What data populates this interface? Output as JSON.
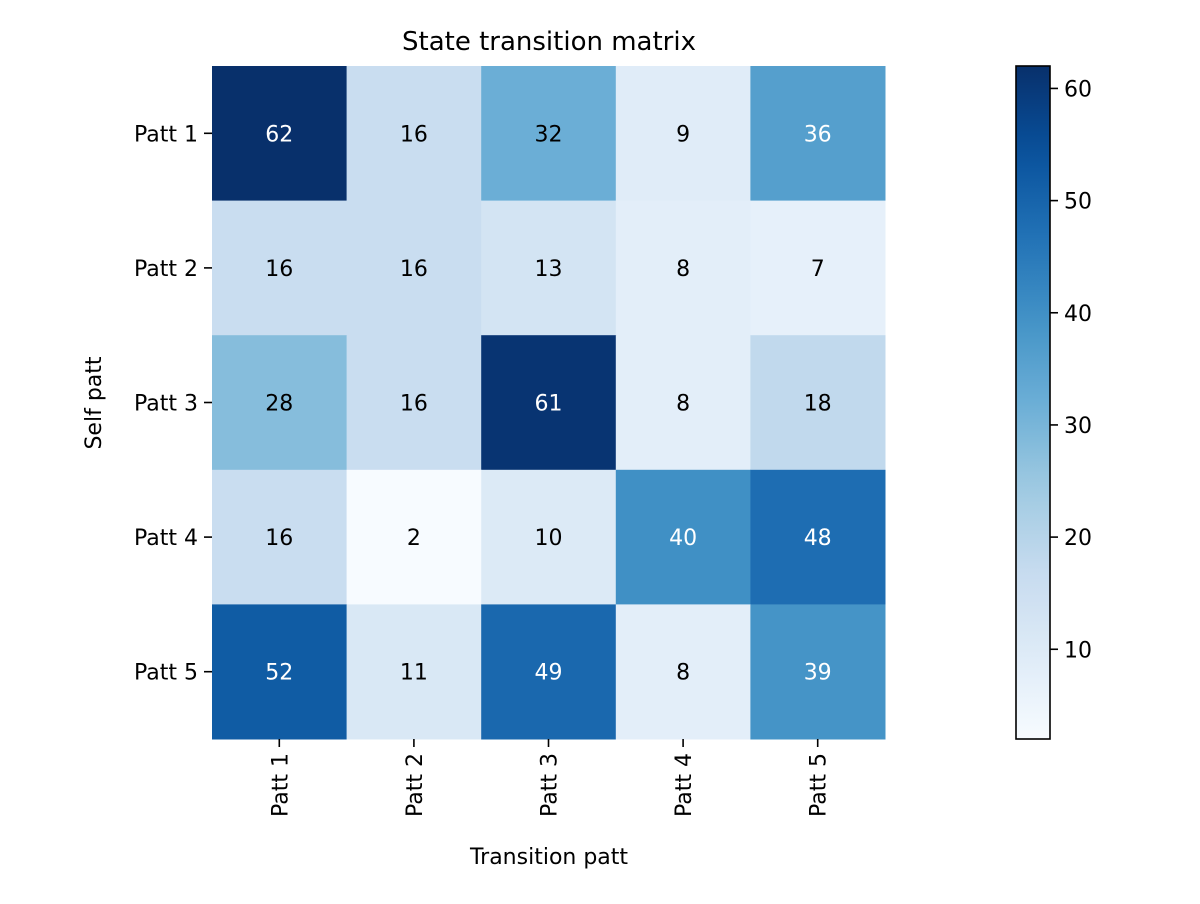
{
  "chart_data": {
    "type": "heatmap",
    "title": "State transition matrix",
    "xlabel": "Transition patt",
    "ylabel": "Self patt",
    "x_categories": [
      "Patt 1",
      "Patt 2",
      "Patt 3",
      "Patt 4",
      "Patt 5"
    ],
    "y_categories": [
      "Patt 1",
      "Patt 2",
      "Patt 3",
      "Patt 4",
      "Patt 5"
    ],
    "values": [
      [
        62,
        16,
        32,
        9,
        36
      ],
      [
        16,
        16,
        13,
        8,
        7
      ],
      [
        28,
        16,
        61,
        8,
        18
      ],
      [
        16,
        2,
        10,
        40,
        48
      ],
      [
        52,
        11,
        49,
        8,
        39
      ]
    ],
    "colormap": "Blues",
    "colorbar": {
      "range": [
        2,
        62
      ],
      "ticks": [
        10,
        20,
        30,
        40,
        50,
        60
      ]
    },
    "annotations": true,
    "grid": false
  }
}
